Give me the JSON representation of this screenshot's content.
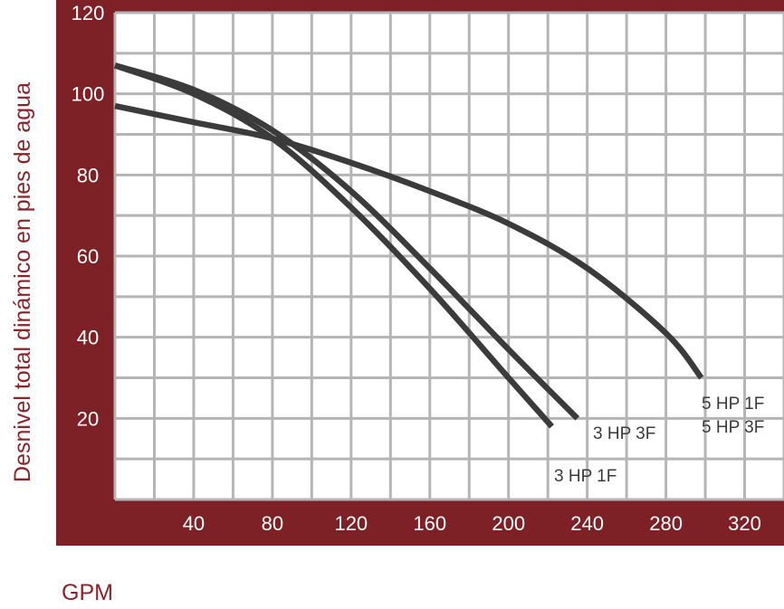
{
  "colors": {
    "frame": "#7e2126",
    "grid": "#b5b5b5",
    "curve": "#3b3b3b",
    "label": "#3a3a3a",
    "axis_title": "#8b2329",
    "tick_text": "#ffffff"
  },
  "chart_data": {
    "type": "line",
    "title": "",
    "xlabel": "GPM",
    "ylabel": "Desnivel total dinámico en pies de agua",
    "xlim": [
      0,
      340
    ],
    "ylim": [
      0,
      120
    ],
    "x_ticks": [
      40,
      80,
      120,
      160,
      200,
      240,
      280,
      320
    ],
    "y_ticks": [
      20,
      40,
      60,
      80,
      100,
      120
    ],
    "grid": true,
    "series": [
      {
        "name": "3 HP 1F",
        "x": [
          0,
          40,
          80,
          120,
          160,
          200,
          222
        ],
        "y": [
          107,
          100,
          89,
          72,
          52,
          30,
          18
        ]
      },
      {
        "name": "3 HP 3F",
        "x": [
          0,
          40,
          80,
          120,
          160,
          200,
          235
        ],
        "y": [
          107,
          101,
          91,
          76,
          57,
          37,
          20
        ]
      },
      {
        "name": "5 HP 1F / 5 HP 3F",
        "x": [
          0,
          40,
          80,
          120,
          160,
          200,
          240,
          280,
          298
        ],
        "y": [
          97,
          93,
          89,
          83,
          76,
          68,
          57,
          41,
          30
        ]
      }
    ],
    "labels": [
      "3 HP 1F",
      "3 HP 3F",
      "5 HP 1F",
      "5 HP 3F"
    ]
  }
}
